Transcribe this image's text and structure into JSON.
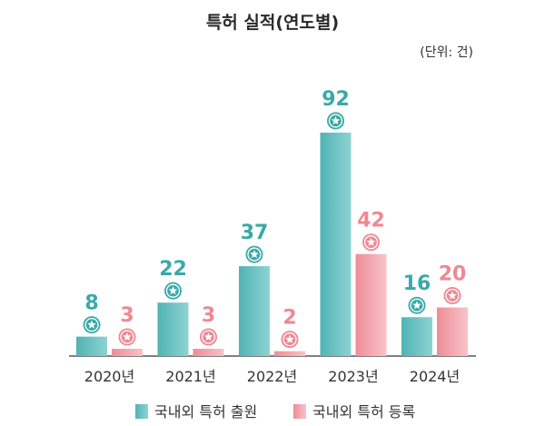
{
  "chart_data": {
    "type": "bar",
    "title": "특허 실적(연도별)",
    "unit_note": "(단위: 건)",
    "categories": [
      "2020년",
      "2021년",
      "2022년",
      "2023년",
      "2024년"
    ],
    "series": [
      {
        "name": "국내외 특허 출원",
        "values": [
          8,
          22,
          37,
          92,
          16
        ],
        "color": "#5bbfbf",
        "label_color": "#3aa9a9"
      },
      {
        "name": "국내외 특허 등록",
        "values": [
          3,
          3,
          2,
          42,
          20
        ],
        "color": "#f29aa3",
        "label_color": "#ef8893"
      }
    ],
    "ylim": [
      0,
      92
    ],
    "grid": false,
    "legend_position": "bottom",
    "marker_icon": "star-badge-icon"
  }
}
